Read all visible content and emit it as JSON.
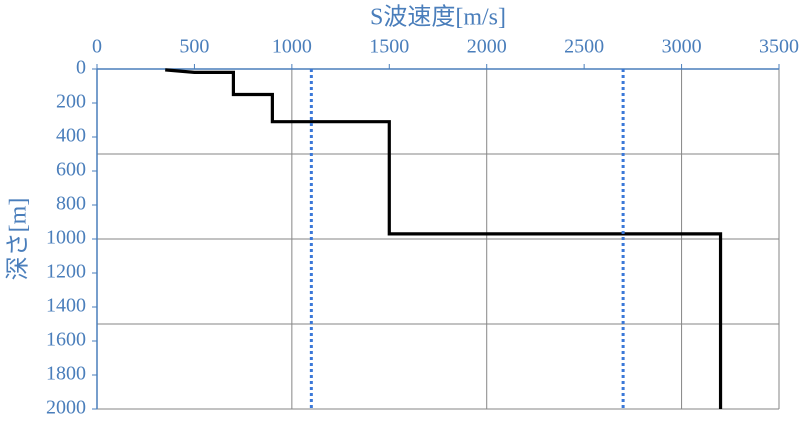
{
  "chart_data": {
    "type": "line",
    "title": "S波速度[m/s]",
    "y_label": "深さ[m]",
    "xlim": [
      0,
      3500
    ],
    "xticks": [
      0,
      500,
      1000,
      1500,
      2000,
      2500,
      3000,
      3500
    ],
    "ylim": [
      0,
      2000
    ],
    "yticks": [
      0,
      200,
      400,
      600,
      800,
      1000,
      1200,
      1400,
      1600,
      1800,
      2000
    ],
    "y_inverted": true,
    "x_grid": [
      1000,
      2000,
      3000,
      3500
    ],
    "y_grid": [
      500,
      1000,
      1500,
      2000
    ],
    "series": [
      {
        "color": "#000000",
        "dash": false,
        "x": [
          350,
          500,
          700,
          700,
          900,
          900,
          1500,
          1500,
          3200,
          3200
        ],
        "values": [
          5,
          20,
          20,
          150,
          150,
          310,
          310,
          970,
          970,
          2000
        ]
      },
      {
        "color": "#3b78d8",
        "dash": true,
        "x": [
          1100,
          1100
        ],
        "values": [
          0,
          2000
        ]
      },
      {
        "color": "#3b78d8",
        "dash": true,
        "x": [
          2700,
          2700
        ],
        "values": [
          0,
          2000
        ]
      }
    ]
  }
}
